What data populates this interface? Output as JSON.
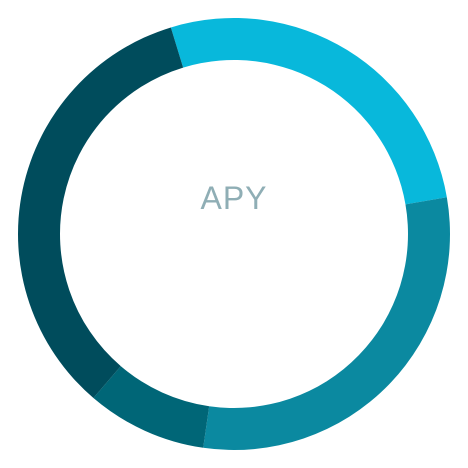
{
  "chart_data": {
    "type": "pie",
    "variant": "donut",
    "center_label": "APY",
    "slices": [
      {
        "value": 27,
        "color": "#08B8DB"
      },
      {
        "value": 30,
        "color": "#0B89A0"
      },
      {
        "value": 9,
        "color": "#006677"
      },
      {
        "value": 34,
        "color": "#004C5C"
      }
    ]
  },
  "colors": {
    "center_label": "#8FAEB5",
    "background": "#FFFFFF"
  }
}
